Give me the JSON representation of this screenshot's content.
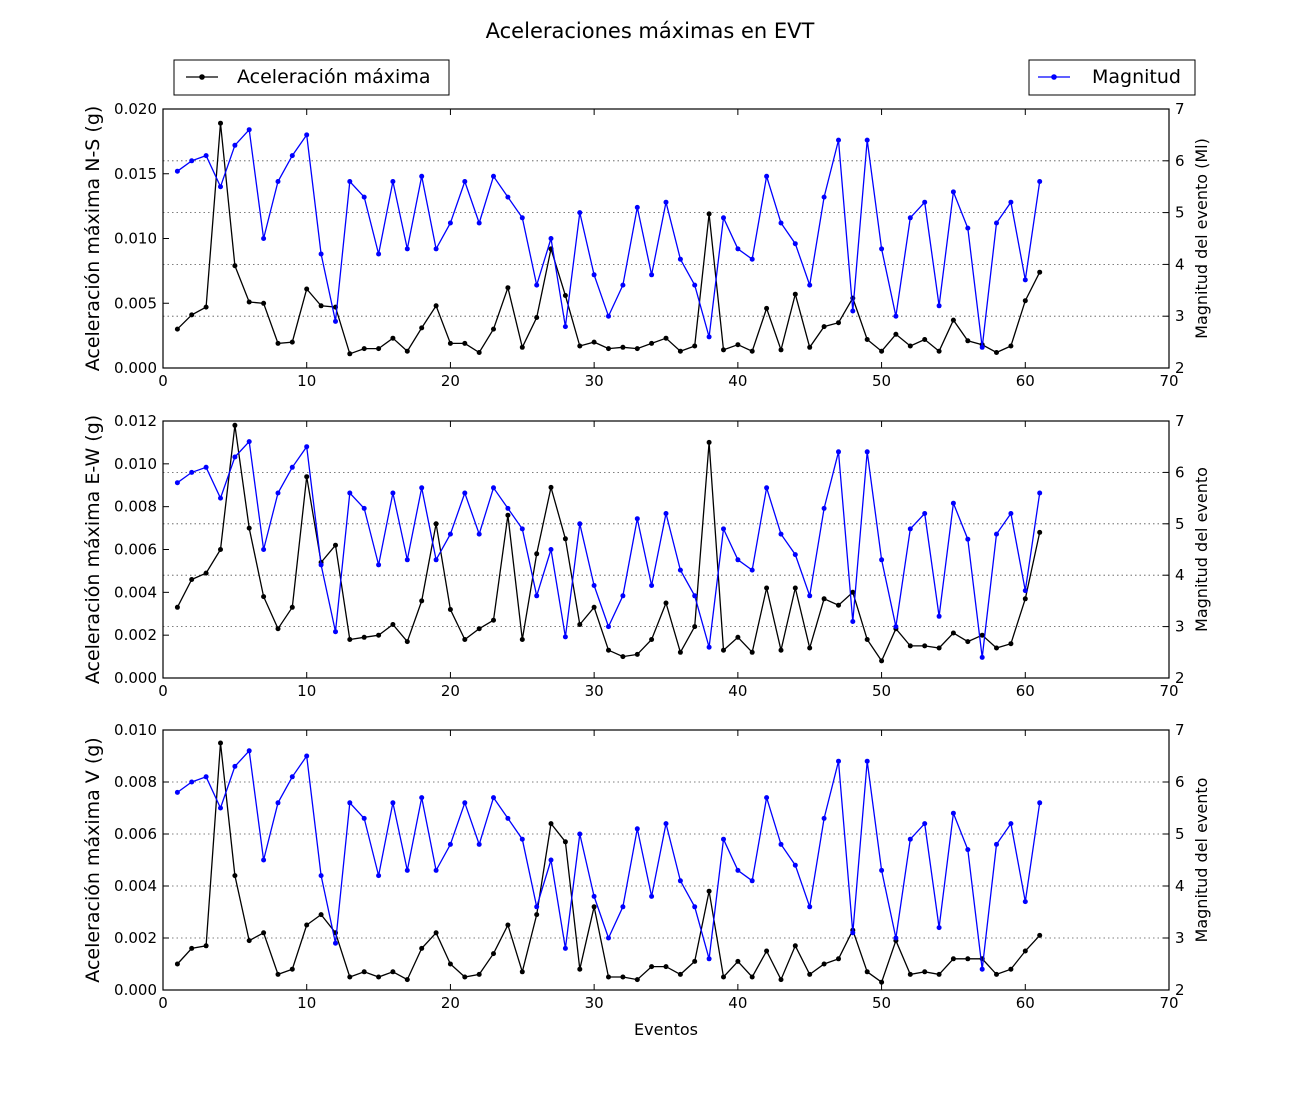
{
  "title": "Aceleraciones máximas en EVT",
  "legend": {
    "left": "Aceleración máxima",
    "right": "Magnitud"
  },
  "colors": {
    "acceleration": "#000000",
    "magnitude": "#0000ff",
    "grid": "#555555"
  },
  "xlabel": "Eventos",
  "chart_data": [
    {
      "type": "line",
      "ylabel_left": "Aceleración máxima N-S (g)",
      "ylabel_right": "Magnitud del evento (Ml)",
      "xlim": [
        0,
        70
      ],
      "xticks": [
        0,
        10,
        20,
        30,
        40,
        50,
        60,
        70
      ],
      "ylim_left": [
        0,
        0.02
      ],
      "yticks_left": [
        "0.000",
        "0.005",
        "0.010",
        "0.015",
        "0.020"
      ],
      "ylim_right": [
        2,
        7
      ],
      "yticks_right": [
        "2",
        "3",
        "4",
        "5",
        "6",
        "7"
      ],
      "grid": "horizontal dotted (right axis)",
      "series": [
        {
          "name": "Aceleración máxima",
          "axis": "left",
          "x": [
            1,
            2,
            3,
            4,
            5,
            6,
            7,
            8,
            9,
            10,
            11,
            12,
            13,
            14,
            15,
            16,
            17,
            18,
            19,
            20,
            21,
            22,
            23,
            24,
            25,
            26,
            27,
            28,
            29,
            30,
            31,
            32,
            33,
            34,
            35,
            36,
            37,
            38,
            39,
            40,
            41,
            42,
            43,
            44,
            45,
            46,
            47,
            48,
            49,
            50,
            51,
            52,
            53,
            54,
            55,
            56,
            57,
            58,
            59,
            60,
            61
          ],
          "values": [
            0.003,
            0.0041,
            0.0047,
            0.0189,
            0.0079,
            0.0051,
            0.005,
            0.0019,
            0.002,
            0.0061,
            0.0048,
            0.0047,
            0.0011,
            0.0015,
            0.0015,
            0.0023,
            0.0013,
            0.0031,
            0.0048,
            0.0019,
            0.0019,
            0.0012,
            0.003,
            0.0062,
            0.0016,
            0.0039,
            0.0092,
            0.0056,
            0.0017,
            0.002,
            0.0015,
            0.0016,
            0.0015,
            0.0019,
            0.0023,
            0.0013,
            0.0017,
            0.0119,
            0.0014,
            0.0018,
            0.0013,
            0.0046,
            0.0014,
            0.0057,
            0.0016,
            0.0032,
            0.0035,
            0.0054,
            0.0022,
            0.0013,
            0.0026,
            0.0017,
            0.0022,
            0.0013,
            0.0037,
            0.0021,
            0.0018,
            0.0012,
            0.0017,
            0.0052,
            0.0074
          ]
        },
        {
          "name": "Magnitud",
          "axis": "right",
          "x": [
            1,
            2,
            3,
            4,
            5,
            6,
            7,
            8,
            9,
            10,
            11,
            12,
            13,
            14,
            15,
            16,
            17,
            18,
            19,
            20,
            21,
            22,
            23,
            24,
            25,
            26,
            27,
            28,
            29,
            30,
            31,
            32,
            33,
            34,
            35,
            36,
            37,
            38,
            39,
            40,
            41,
            42,
            43,
            44,
            45,
            46,
            47,
            48,
            49,
            50,
            51,
            52,
            53,
            54,
            55,
            56,
            57,
            58,
            59,
            60,
            61
          ],
          "values": [
            5.8,
            6.0,
            6.1,
            5.5,
            6.3,
            6.6,
            4.5,
            5.6,
            6.1,
            6.5,
            4.2,
            2.9,
            5.6,
            5.3,
            4.2,
            5.6,
            4.3,
            5.7,
            4.3,
            4.8,
            5.6,
            4.8,
            5.7,
            5.3,
            4.9,
            3.6,
            4.5,
            2.8,
            5.0,
            3.8,
            3.0,
            3.6,
            5.1,
            3.8,
            5.2,
            4.1,
            3.6,
            2.6,
            4.9,
            4.3,
            4.1,
            5.7,
            4.8,
            4.4,
            3.6,
            5.3,
            6.4,
            3.1,
            6.4,
            4.3,
            3.0,
            4.9,
            5.2,
            3.2,
            5.4,
            4.7,
            2.4,
            4.8,
            5.2,
            3.7,
            5.6
          ]
        }
      ]
    },
    {
      "type": "line",
      "ylabel_left": "Aceleración máxima E-W (g)",
      "ylabel_right": "Magnitud del evento",
      "xlim": [
        0,
        70
      ],
      "xticks": [
        0,
        10,
        20,
        30,
        40,
        50,
        60,
        70
      ],
      "ylim_left": [
        0,
        0.012
      ],
      "yticks_left": [
        "0.000",
        "0.002",
        "0.004",
        "0.006",
        "0.008",
        "0.010",
        "0.012"
      ],
      "ylim_right": [
        2,
        7
      ],
      "yticks_right": [
        "2",
        "3",
        "4",
        "5",
        "6",
        "7"
      ],
      "grid": "horizontal dotted (right axis)",
      "series": [
        {
          "name": "Aceleración máxima",
          "axis": "left",
          "x": [
            1,
            2,
            3,
            4,
            5,
            6,
            7,
            8,
            9,
            10,
            11,
            12,
            13,
            14,
            15,
            16,
            17,
            18,
            19,
            20,
            21,
            22,
            23,
            24,
            25,
            26,
            27,
            28,
            29,
            30,
            31,
            32,
            33,
            34,
            35,
            36,
            37,
            38,
            39,
            40,
            41,
            42,
            43,
            44,
            45,
            46,
            47,
            48,
            49,
            50,
            51,
            52,
            53,
            54,
            55,
            56,
            57,
            58,
            59,
            60,
            61
          ],
          "values": [
            0.0033,
            0.0046,
            0.0049,
            0.006,
            0.0118,
            0.007,
            0.0038,
            0.0023,
            0.0033,
            0.0094,
            0.0054,
            0.0062,
            0.0018,
            0.0019,
            0.002,
            0.0025,
            0.0017,
            0.0036,
            0.0072,
            0.0032,
            0.0018,
            0.0023,
            0.0027,
            0.0076,
            0.0018,
            0.0058,
            0.0089,
            0.0065,
            0.0025,
            0.0033,
            0.0013,
            0.001,
            0.0011,
            0.0018,
            0.0035,
            0.0012,
            0.0024,
            0.011,
            0.0013,
            0.0019,
            0.0012,
            0.0042,
            0.0013,
            0.0042,
            0.0014,
            0.0037,
            0.0034,
            0.004,
            0.0018,
            0.0008,
            0.0023,
            0.0015,
            0.0015,
            0.0014,
            0.0021,
            0.0017,
            0.002,
            0.0014,
            0.0016,
            0.0037,
            0.0068
          ]
        },
        {
          "name": "Magnitud",
          "axis": "right",
          "x": [
            1,
            2,
            3,
            4,
            5,
            6,
            7,
            8,
            9,
            10,
            11,
            12,
            13,
            14,
            15,
            16,
            17,
            18,
            19,
            20,
            21,
            22,
            23,
            24,
            25,
            26,
            27,
            28,
            29,
            30,
            31,
            32,
            33,
            34,
            35,
            36,
            37,
            38,
            39,
            40,
            41,
            42,
            43,
            44,
            45,
            46,
            47,
            48,
            49,
            50,
            51,
            52,
            53,
            54,
            55,
            56,
            57,
            58,
            59,
            60,
            61
          ],
          "values": [
            5.8,
            6.0,
            6.1,
            5.5,
            6.3,
            6.6,
            4.5,
            5.6,
            6.1,
            6.5,
            4.2,
            2.9,
            5.6,
            5.3,
            4.2,
            5.6,
            4.3,
            5.7,
            4.3,
            4.8,
            5.6,
            4.8,
            5.7,
            5.3,
            4.9,
            3.6,
            4.5,
            2.8,
            5.0,
            3.8,
            3.0,
            3.6,
            5.1,
            3.8,
            5.2,
            4.1,
            3.6,
            2.6,
            4.9,
            4.3,
            4.1,
            5.7,
            4.8,
            4.4,
            3.6,
            5.3,
            6.4,
            3.1,
            6.4,
            4.3,
            3.0,
            4.9,
            5.2,
            3.2,
            5.4,
            4.7,
            2.4,
            4.8,
            5.2,
            3.7,
            5.6
          ]
        }
      ]
    },
    {
      "type": "line",
      "ylabel_left": "Aceleración máxima V (g)",
      "ylabel_right": "Magnitud del evento",
      "xlim": [
        0,
        70
      ],
      "xticks": [
        0,
        10,
        20,
        30,
        40,
        50,
        60,
        70
      ],
      "ylim_left": [
        0,
        0.01
      ],
      "yticks_left": [
        "0.000",
        "0.002",
        "0.004",
        "0.006",
        "0.008",
        "0.010"
      ],
      "ylim_right": [
        2,
        7
      ],
      "yticks_right": [
        "2",
        "3",
        "4",
        "5",
        "6",
        "7"
      ],
      "grid": "horizontal dotted (right axis)",
      "series": [
        {
          "name": "Aceleración máxima",
          "axis": "left",
          "x": [
            1,
            2,
            3,
            4,
            5,
            6,
            7,
            8,
            9,
            10,
            11,
            12,
            13,
            14,
            15,
            16,
            17,
            18,
            19,
            20,
            21,
            22,
            23,
            24,
            25,
            26,
            27,
            28,
            29,
            30,
            31,
            32,
            33,
            34,
            35,
            36,
            37,
            38,
            39,
            40,
            41,
            42,
            43,
            44,
            45,
            46,
            47,
            48,
            49,
            50,
            51,
            52,
            53,
            54,
            55,
            56,
            57,
            58,
            59,
            60,
            61
          ],
          "values": [
            0.001,
            0.0016,
            0.0017,
            0.0095,
            0.0044,
            0.0019,
            0.0022,
            0.0006,
            0.0008,
            0.0025,
            0.0029,
            0.0022,
            0.0005,
            0.0007,
            0.0005,
            0.0007,
            0.0004,
            0.0016,
            0.0022,
            0.001,
            0.0005,
            0.0006,
            0.0014,
            0.0025,
            0.0007,
            0.0029,
            0.0064,
            0.0057,
            0.0008,
            0.0032,
            0.0005,
            0.0005,
            0.0004,
            0.0009,
            0.0009,
            0.0006,
            0.0011,
            0.0038,
            0.0005,
            0.0011,
            0.0005,
            0.0015,
            0.0004,
            0.0017,
            0.0006,
            0.001,
            0.0012,
            0.0023,
            0.0007,
            0.0003,
            0.0019,
            0.0006,
            0.0007,
            0.0006,
            0.0012,
            0.0012,
            0.0012,
            0.0006,
            0.0008,
            0.0015,
            0.0021
          ]
        },
        {
          "name": "Magnitud",
          "axis": "right",
          "x": [
            1,
            2,
            3,
            4,
            5,
            6,
            7,
            8,
            9,
            10,
            11,
            12,
            13,
            14,
            15,
            16,
            17,
            18,
            19,
            20,
            21,
            22,
            23,
            24,
            25,
            26,
            27,
            28,
            29,
            30,
            31,
            32,
            33,
            34,
            35,
            36,
            37,
            38,
            39,
            40,
            41,
            42,
            43,
            44,
            45,
            46,
            47,
            48,
            49,
            50,
            51,
            52,
            53,
            54,
            55,
            56,
            57,
            58,
            59,
            60,
            61
          ],
          "values": [
            5.8,
            6.0,
            6.1,
            5.5,
            6.3,
            6.6,
            4.5,
            5.6,
            6.1,
            6.5,
            4.2,
            2.9,
            5.6,
            5.3,
            4.2,
            5.6,
            4.3,
            5.7,
            4.3,
            4.8,
            5.6,
            4.8,
            5.7,
            5.3,
            4.9,
            3.6,
            4.5,
            2.8,
            5.0,
            3.8,
            3.0,
            3.6,
            5.1,
            3.8,
            5.2,
            4.1,
            3.6,
            2.6,
            4.9,
            4.3,
            4.1,
            5.7,
            4.8,
            4.4,
            3.6,
            5.3,
            6.4,
            3.1,
            6.4,
            4.3,
            3.0,
            4.9,
            5.2,
            3.2,
            5.4,
            4.7,
            2.4,
            4.8,
            5.2,
            3.7,
            5.6
          ]
        }
      ]
    }
  ]
}
